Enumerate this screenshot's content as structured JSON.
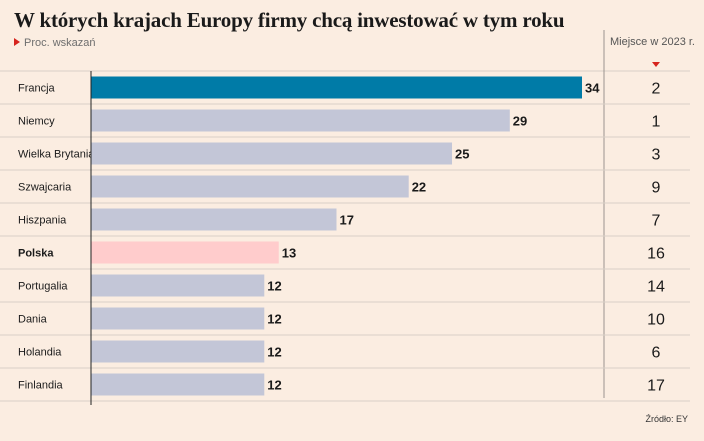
{
  "chart_data": {
    "type": "bar",
    "orientation": "horizontal",
    "title": "W których krajach Europy firmy chcą inwestować w tym roku",
    "subtitle": "Proc. wskazań",
    "categories": [
      "Francja",
      "Niemcy",
      "Wielka Brytania",
      "Szwajcaria",
      "Hiszpania",
      "Polska",
      "Portugalia",
      "Dania",
      "Holandia",
      "Finlandia"
    ],
    "values": [
      34,
      29,
      25,
      22,
      17,
      13,
      12,
      12,
      12,
      12
    ],
    "highlighted": [
      "Francja",
      "Polska"
    ],
    "rank_column": {
      "header": "Miejsce w 2023 r.",
      "values": [
        2,
        1,
        3,
        9,
        7,
        16,
        14,
        10,
        6,
        17
      ]
    },
    "xlim": [
      0,
      34
    ],
    "grid": false,
    "colors": {
      "default": "#c3c6d7",
      "leader": "#007ba7",
      "poland": "#ffcccc"
    },
    "source": "Źródło: EY"
  }
}
